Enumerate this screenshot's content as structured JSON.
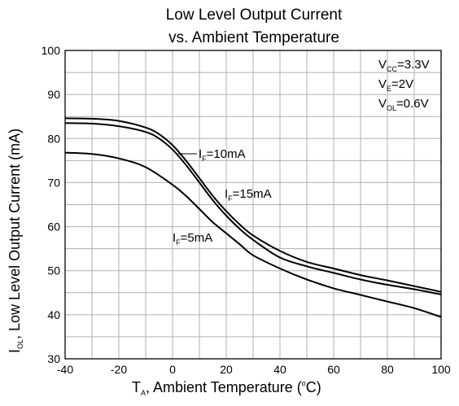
{
  "chart_data": {
    "type": "line",
    "title_line1": "Low Level Output Current",
    "title_line2": "vs. Ambient Temperature",
    "xlabel": {
      "main": "T",
      "sub": "A",
      "rest": ", Ambient Temperature (",
      "deg": "o",
      "unit": "C)"
    },
    "ylabel": {
      "main": "I",
      "sub": "OL",
      "rest": ", Low Level Output Current (mA)"
    },
    "xlim": [
      -40,
      100
    ],
    "ylim": [
      30,
      100
    ],
    "x_ticks": [
      -40,
      -20,
      0,
      20,
      40,
      60,
      80,
      100
    ],
    "y_ticks": [
      30,
      40,
      50,
      60,
      70,
      80,
      90,
      100
    ],
    "grid": true,
    "conditions": [
      {
        "main": "V",
        "sub": "CC",
        "rest": "=3.3V"
      },
      {
        "main": "V",
        "sub": "E",
        "rest": "=2V"
      },
      {
        "main": "V",
        "sub": "OL",
        "rest": "=0.6V"
      }
    ],
    "series": [
      {
        "name": "I_F=10mA",
        "label": {
          "main": "I",
          "sub": "F",
          "rest": "=10mA"
        },
        "x": [
          -40,
          -30,
          -20,
          -10,
          -5,
          0,
          5,
          10,
          15,
          20,
          25,
          30,
          40,
          50,
          60,
          70,
          80,
          90,
          100
        ],
        "y": [
          84.6,
          84.5,
          84,
          82.5,
          81,
          78.5,
          75,
          71,
          67,
          63.5,
          60.5,
          58,
          54.5,
          52,
          50.5,
          49,
          47.8,
          46.5,
          45.2
        ]
      },
      {
        "name": "I_F=15mA",
        "label": {
          "main": "I",
          "sub": "F",
          "rest": "=15mA"
        },
        "x": [
          -40,
          -30,
          -20,
          -10,
          -5,
          0,
          5,
          10,
          15,
          20,
          25,
          30,
          40,
          50,
          60,
          70,
          80,
          90,
          100
        ],
        "y": [
          83.5,
          83.4,
          82.8,
          81.5,
          80,
          77.5,
          74,
          70,
          66,
          62.5,
          59.5,
          57,
          53,
          51,
          49.5,
          48,
          46.8,
          45.8,
          44.6
        ]
      },
      {
        "name": "I_F=5mA",
        "label": {
          "main": "I",
          "sub": "F",
          "rest": "=5mA"
        },
        "x": [
          -40,
          -30,
          -20,
          -10,
          0,
          5,
          10,
          15,
          20,
          25,
          30,
          40,
          50,
          60,
          70,
          80,
          90,
          100
        ],
        "y": [
          76.8,
          76.5,
          75.5,
          73.5,
          69.5,
          67,
          64,
          61,
          58.5,
          56,
          53.5,
          50.5,
          48,
          46,
          44.5,
          43,
          41.5,
          39.5
        ]
      }
    ]
  }
}
